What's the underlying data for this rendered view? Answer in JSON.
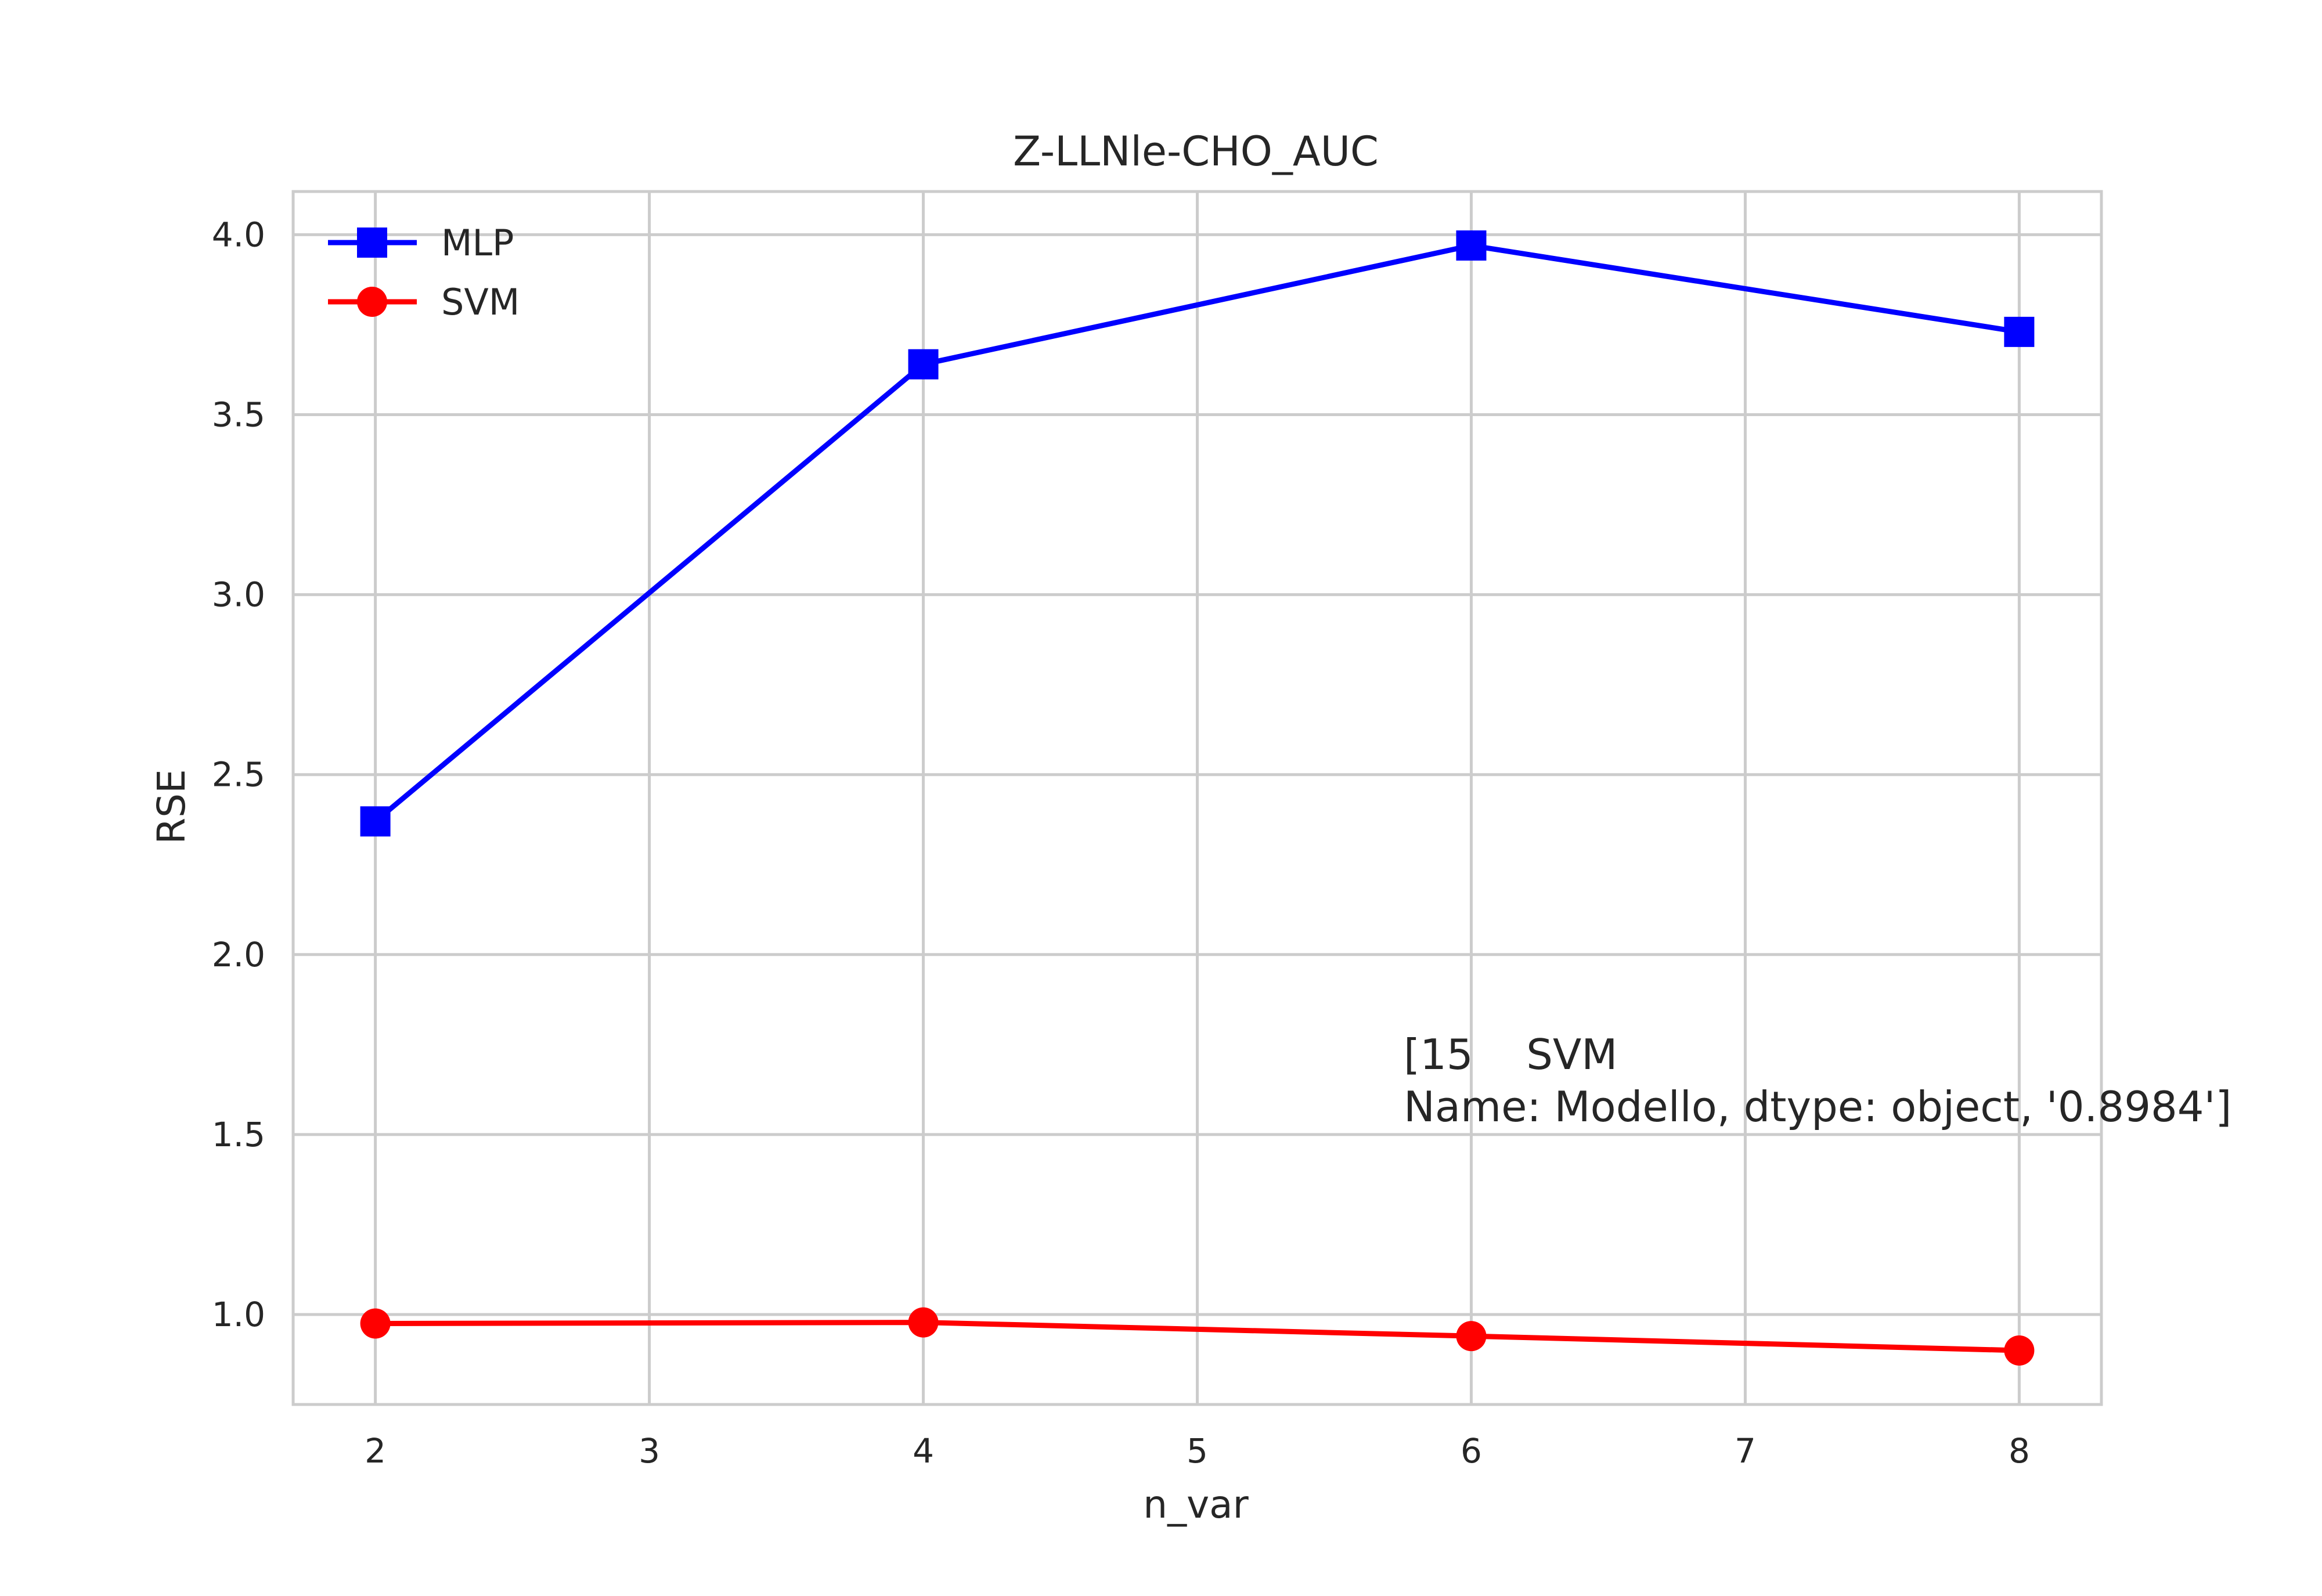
{
  "chart_data": {
    "type": "line",
    "title": "Z-LLNle-CHO_AUC",
    "xlabel": "n_var",
    "ylabel": "RSE",
    "x": [
      2,
      4,
      6,
      8
    ],
    "xlim": [
      1.7,
      8.3
    ],
    "ylim": [
      0.75,
      4.12
    ],
    "xticks": [
      2,
      3,
      4,
      5,
      6,
      7,
      8
    ],
    "yticks": [
      1.0,
      1.5,
      2.0,
      2.5,
      3.0,
      3.5,
      4.0
    ],
    "grid": true,
    "legend_position": "top-left",
    "series": [
      {
        "name": "MLP",
        "values": [
          2.37,
          3.64,
          3.97,
          3.73
        ],
        "color": "#0000ff",
        "marker": "square"
      },
      {
        "name": "SVM",
        "values": [
          0.975,
          0.978,
          0.94,
          0.9
        ],
        "color": "#ff0000",
        "marker": "circle"
      }
    ],
    "annotations": [
      "[15    SVM",
      "Name: Modello, dtype: object, '0.8984']"
    ]
  }
}
